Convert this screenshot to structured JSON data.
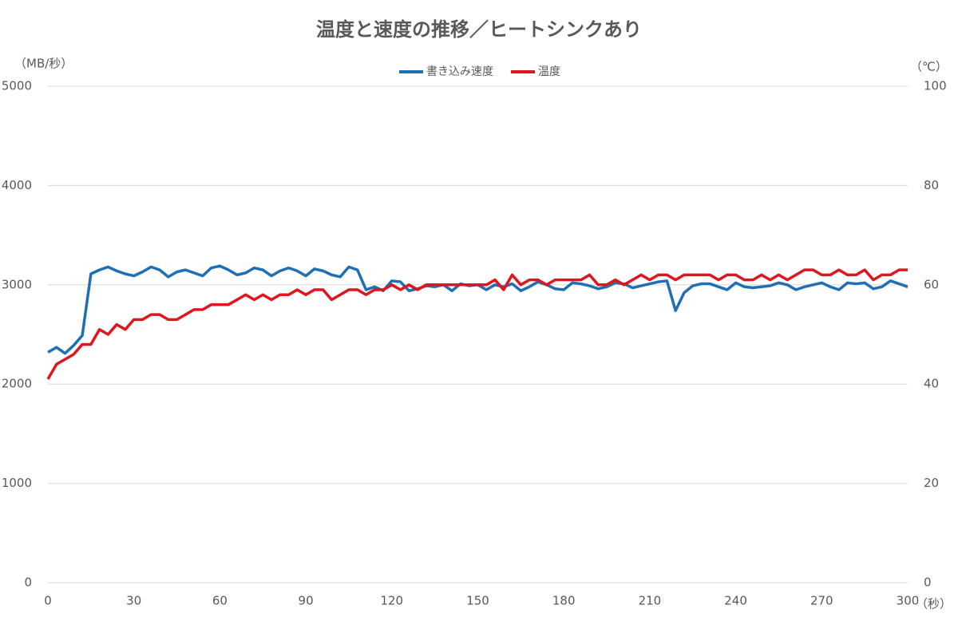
{
  "chart_data": {
    "type": "line",
    "title": "温度と速度の推移／ヒートシンクあり",
    "y_label": "（MB/秒）",
    "y2_label": "（℃）",
    "x_label": "（秒）",
    "x": [
      0,
      3,
      6,
      9,
      12,
      15,
      18,
      21,
      24,
      27,
      30,
      33,
      36,
      39,
      42,
      45,
      48,
      51,
      54,
      57,
      60,
      63,
      66,
      69,
      72,
      75,
      78,
      81,
      84,
      87,
      90,
      93,
      96,
      99,
      102,
      105,
      108,
      111,
      114,
      117,
      120,
      123,
      126,
      129,
      132,
      135,
      138,
      141,
      144,
      147,
      150,
      153,
      156,
      159,
      162,
      165,
      168,
      171,
      174,
      177,
      180,
      183,
      186,
      189,
      192,
      195,
      198,
      201,
      204,
      207,
      210,
      213,
      216,
      219,
      222,
      225,
      228,
      231,
      234,
      237,
      240,
      243,
      246,
      249,
      252,
      255,
      258,
      261,
      264,
      267,
      270,
      273,
      276,
      279,
      282,
      285,
      288,
      291,
      294,
      297,
      300
    ],
    "series": [
      {
        "name": "書き込み速度",
        "color": "#1f6fb4",
        "values": [
          2320,
          2370,
          2310,
          2390,
          2490,
          3110,
          3150,
          3180,
          3140,
          3110,
          3090,
          3130,
          3180,
          3150,
          3080,
          3130,
          3150,
          3120,
          3090,
          3170,
          3190,
          3150,
          3100,
          3120,
          3170,
          3150,
          3090,
          3140,
          3170,
          3140,
          3090,
          3160,
          3140,
          3100,
          3080,
          3180,
          3150,
          2950,
          2980,
          2940,
          3040,
          3030,
          2940,
          2960,
          2990,
          2980,
          3000,
          2940,
          3010,
          2990,
          3000,
          2950,
          3000,
          2980,
          3010,
          2940,
          2980,
          3030,
          3000,
          2960,
          2950,
          3020,
          3010,
          2990,
          2960,
          2980,
          3020,
          3010,
          2970,
          2990,
          3010,
          3030,
          3040,
          2740,
          2920,
          2990,
          3010,
          3010,
          2980,
          2950,
          3020,
          2980,
          2970,
          2980,
          2990,
          3020,
          3000,
          2950,
          2980,
          3000,
          3020,
          2980,
          2950,
          3020,
          3010,
          3020,
          2960,
          2980,
          3040,
          3010,
          2980
        ]
      },
      {
        "name": "温度",
        "color": "#e0161e",
        "axis": "y2",
        "values": [
          41,
          44,
          45,
          46,
          48,
          48,
          51,
          50,
          52,
          51,
          53,
          53,
          54,
          54,
          53,
          53,
          54,
          55,
          55,
          56,
          56,
          56,
          57,
          58,
          57,
          58,
          57,
          58,
          58,
          59,
          58,
          59,
          59,
          57,
          58,
          59,
          59,
          58,
          59,
          59,
          60,
          59,
          60,
          59,
          60,
          60,
          60,
          60,
          60,
          60,
          60,
          60,
          61,
          59,
          62,
          60,
          61,
          61,
          60,
          61,
          61,
          61,
          61,
          62,
          60,
          60,
          61,
          60,
          61,
          62,
          61,
          62,
          62,
          61,
          62,
          62,
          62,
          62,
          61,
          62,
          62,
          61,
          61,
          62,
          61,
          62,
          61,
          62,
          63,
          63,
          62,
          62,
          63,
          62,
          62,
          63,
          61,
          62,
          62,
          63,
          63
        ]
      }
    ],
    "xlim": [
      0,
      300
    ],
    "xticks": [
      0,
      30,
      60,
      90,
      120,
      150,
      180,
      210,
      240,
      270,
      300
    ],
    "ylim": [
      0,
      5000
    ],
    "yticks": [
      0,
      1000,
      2000,
      3000,
      4000,
      5000
    ],
    "y2lim": [
      0,
      100
    ],
    "y2ticks": [
      0,
      20,
      40,
      60,
      80,
      100
    ],
    "grid": true,
    "legend": "top"
  }
}
